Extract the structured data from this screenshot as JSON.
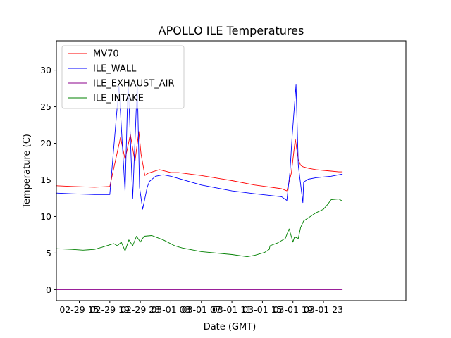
{
  "chart_data": {
    "type": "line",
    "title": "APOLLO ILE Temperatures",
    "xlabel": "Date (GMT)",
    "ylabel": "Temperature (C)",
    "x_unit": "hours",
    "xlim": [
      12,
      57.8
    ],
    "ylim": [
      -1.5,
      34
    ],
    "x_ticks": [
      {
        "pos": 15,
        "label": "02-29 15"
      },
      {
        "pos": 19,
        "label": "02-29 19"
      },
      {
        "pos": 23,
        "label": "02-29 23"
      },
      {
        "pos": 27,
        "label": "03-01 03"
      },
      {
        "pos": 31,
        "label": "03-01 07"
      },
      {
        "pos": 35,
        "label": "03-01 11"
      },
      {
        "pos": 39,
        "label": "03-01 15"
      },
      {
        "pos": 43,
        "label": "03-01 19"
      },
      {
        "pos": 47,
        "label": "03-01 23"
      }
    ],
    "y_ticks": [
      0,
      5,
      10,
      15,
      20,
      25,
      30
    ],
    "legend_position": "top-left",
    "grid": false,
    "series": [
      {
        "name": "MV70",
        "color": "#ff0000",
        "x": [
          12,
          14,
          17,
          19,
          20.4,
          21.0,
          21.7,
          22.3,
          22.8,
          23.1,
          23.6,
          24.0,
          25.5,
          27,
          28,
          31,
          35,
          38,
          41.5,
          42.2,
          42.8,
          43.3,
          43.7,
          44,
          44.3,
          45,
          46,
          47,
          48,
          49,
          49.5
        ],
        "values": [
          14.2,
          14.1,
          14.0,
          14.1,
          20.8,
          17.8,
          21.2,
          17.5,
          21.6,
          18.5,
          15.6,
          15.9,
          16.4,
          16.0,
          16.0,
          15.6,
          14.9,
          14.3,
          13.8,
          13.5,
          16.0,
          20.6,
          17.8,
          17.0,
          16.8,
          16.6,
          16.4,
          16.3,
          16.2,
          16.1,
          16.1
        ]
      },
      {
        "name": "ILE_WALL",
        "color": "#0000ff",
        "x": [
          12,
          14,
          17,
          19,
          20.2,
          21.0,
          21.4,
          22.0,
          22.6,
          22.9,
          23.3,
          23.9,
          24.2,
          25,
          26,
          27,
          28,
          31,
          35,
          38,
          41.5,
          42.2,
          42.6,
          42.9,
          43.4,
          43.7,
          44.3,
          44.4,
          45,
          46,
          47,
          48,
          49.5
        ],
        "values": [
          13.2,
          13.1,
          13.0,
          13.0,
          27.8,
          13.4,
          28.6,
          12.5,
          28.2,
          14.0,
          11.0,
          14.0,
          14.8,
          15.5,
          15.7,
          15.5,
          15.2,
          14.3,
          13.5,
          13.1,
          12.7,
          12.2,
          16.0,
          21.0,
          28.0,
          17.0,
          11.9,
          14.7,
          15.1,
          15.3,
          15.4,
          15.5,
          15.8
        ]
      },
      {
        "name": "ILE_EXHAUST_AIR",
        "color": "#8b008b",
        "x": [
          12,
          49.5
        ],
        "values": [
          0,
          0
        ]
      },
      {
        "name": "ILE_INTAKE",
        "color": "#008000",
        "x": [
          12,
          14,
          15.5,
          17,
          18,
          19.5,
          20.0,
          20.5,
          21.0,
          21.5,
          22.0,
          22.5,
          23.0,
          23.5,
          24.5,
          25,
          26,
          27.5,
          28.5,
          31,
          35,
          37,
          38,
          39.3,
          39.9,
          40,
          41,
          42,
          42.5,
          43,
          43.2,
          43.7,
          44,
          44.4,
          45,
          46,
          47,
          47.5,
          48,
          49,
          49.5
        ],
        "values": [
          5.6,
          5.5,
          5.4,
          5.5,
          5.8,
          6.3,
          6.0,
          6.5,
          5.3,
          6.8,
          6.0,
          7.3,
          6.5,
          7.3,
          7.4,
          7.2,
          6.8,
          6.0,
          5.7,
          5.2,
          4.8,
          4.5,
          4.7,
          5.1,
          5.5,
          6.0,
          6.4,
          7.0,
          8.3,
          6.5,
          7.2,
          7.0,
          8.5,
          9.4,
          9.8,
          10.5,
          11.0,
          11.6,
          12.3,
          12.4,
          12.1
        ]
      }
    ]
  }
}
